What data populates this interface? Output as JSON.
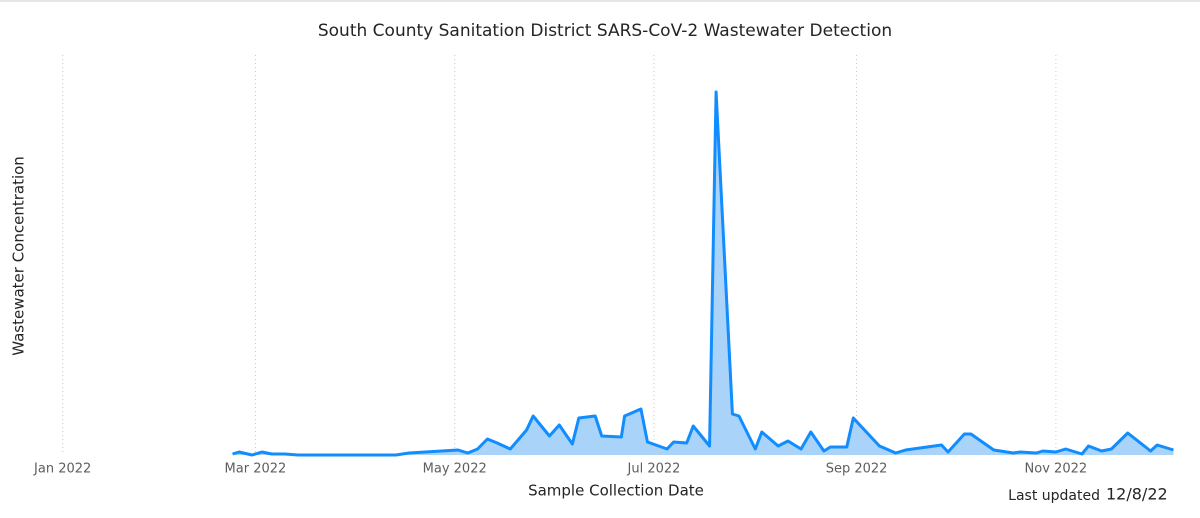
{
  "chart_data": {
    "type": "area",
    "title": "South County Sanitation District SARS-CoV-2 Wastewater Detection",
    "x_label": "Sample Collection Date",
    "y_label": "Wastewater Concentration",
    "footer_label": "Last updated",
    "footer_date": "12/8/22",
    "color": "#118dff",
    "fill": "#a9d3f9",
    "grid": true,
    "xlim": [
      "2021-12-22",
      "2022-12-09"
    ],
    "xticks": [
      {
        "value": "2022-01",
        "label": "Jan 2022"
      },
      {
        "value": "2022-03",
        "label": "Mar 2022"
      },
      {
        "value": "2022-05",
        "label": "May 2022"
      },
      {
        "value": "2022-07",
        "label": "Jul 2022"
      },
      {
        "value": "2022-09",
        "label": "Sep 2022"
      },
      {
        "value": "2022-11",
        "label": "Nov 2022"
      }
    ],
    "ylim": [
      0,
      100
    ],
    "x": [
      "2022-02-22",
      "2022-02-24",
      "2022-02-28",
      "2022-03-03",
      "2022-03-06",
      "2022-03-10",
      "2022-03-14",
      "2022-04-13",
      "2022-04-17",
      "2022-05-02",
      "2022-05-05",
      "2022-05-08",
      "2022-05-11",
      "2022-05-14",
      "2022-05-18",
      "2022-05-23",
      "2022-05-25",
      "2022-05-30",
      "2022-06-02",
      "2022-06-06",
      "2022-06-08",
      "2022-06-13",
      "2022-06-15",
      "2022-06-21",
      "2022-06-22",
      "2022-06-27",
      "2022-06-29",
      "2022-07-05",
      "2022-07-07",
      "2022-07-11",
      "2022-07-13",
      "2022-07-18",
      "2022-07-20",
      "2022-07-25",
      "2022-07-27",
      "2022-08-01",
      "2022-08-03",
      "2022-08-08",
      "2022-08-11",
      "2022-08-15",
      "2022-08-18",
      "2022-08-22",
      "2022-08-24",
      "2022-08-29",
      "2022-08-31",
      "2022-09-08",
      "2022-09-13",
      "2022-09-16",
      "2022-09-27",
      "2022-09-29",
      "2022-10-04",
      "2022-10-06",
      "2022-10-13",
      "2022-10-19",
      "2022-10-21",
      "2022-10-26",
      "2022-10-28",
      "2022-11-01",
      "2022-11-04",
      "2022-11-09",
      "2022-11-11",
      "2022-11-15",
      "2022-11-18",
      "2022-11-23",
      "2022-11-30",
      "2022-12-02",
      "2022-12-07"
    ],
    "values": [
      0.25,
      0.75,
      0,
      0.75,
      0.25,
      0.25,
      0,
      0,
      0.5,
      1.25,
      0.5,
      1.5,
      4,
      3,
      1.5,
      6.25,
      9.75,
      4.75,
      7.5,
      2.75,
      9.25,
      9.75,
      4.75,
      4.5,
      9.75,
      11.5,
      3.25,
      1.5,
      3.25,
      3,
      7.25,
      2.25,
      90.75,
      10.25,
      9.75,
      1.5,
      5.75,
      2.25,
      3.5,
      1.5,
      5.75,
      1,
      2,
      2,
      9.25,
      2.25,
      0.5,
      1.25,
      2.5,
      0.75,
      5.25,
      5.25,
      1.25,
      0.5,
      0.75,
      0.5,
      1,
      0.75,
      1.5,
      0.25,
      2.25,
      1,
      1.5,
      5.5,
      1,
      2.5,
      1.25
    ]
  }
}
